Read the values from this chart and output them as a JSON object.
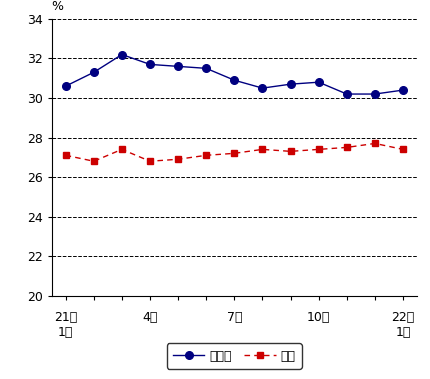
{
  "ylabel": "%",
  "ylim": [
    20,
    34
  ],
  "yticks": [
    20,
    22,
    24,
    26,
    28,
    30,
    32,
    34
  ],
  "x_tick_positions": [
    0,
    3,
    6,
    9,
    12
  ],
  "x_tick_labels_line1": [
    "21年",
    "",
    "7月",
    "",
    "22年"
  ],
  "x_tick_labels_line2": [
    "1月",
    "4月",
    "",
    "10月",
    "1月"
  ],
  "num_points": 13,
  "gifu_data": [
    30.6,
    31.3,
    32.2,
    31.7,
    31.6,
    31.5,
    30.9,
    30.5,
    30.7,
    30.8,
    30.2,
    30.2,
    30.4
  ],
  "japan_data": [
    27.1,
    26.8,
    27.4,
    26.8,
    26.9,
    27.1,
    27.2,
    27.4,
    27.3,
    27.4,
    27.5,
    27.7,
    27.4
  ],
  "gifu_color": "#000080",
  "japan_color": "#cc0000",
  "gifu_label": "岐阜県",
  "japan_label": "全国",
  "background_color": "#ffffff",
  "grid_color": "#000000",
  "font_size": 9
}
